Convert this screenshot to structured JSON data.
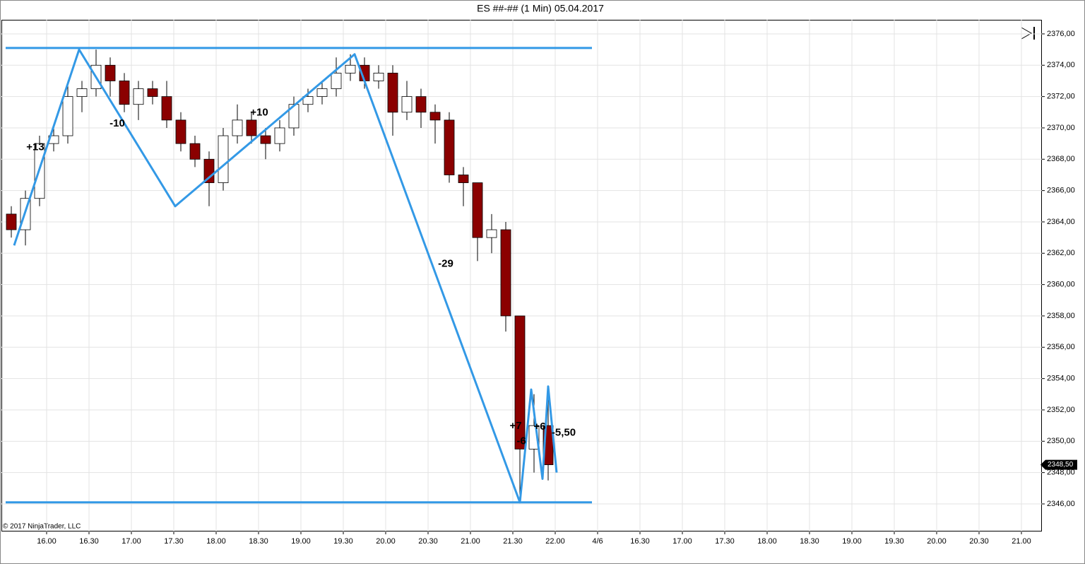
{
  "chart_data": {
    "type": "candlestick",
    "title": "ES ##-## (1 Min)  05.04.2017",
    "copyright": "© 2017 NinjaTrader, LLC",
    "xlim": [
      928,
      1664.5
    ],
    "ylim": [
      2344.24,
      2376.9
    ],
    "xticks": [
      {
        "value": 960,
        "label": "16.00"
      },
      {
        "value": 990,
        "label": "16.30"
      },
      {
        "value": 1020,
        "label": "17.00"
      },
      {
        "value": 1050,
        "label": "17.30"
      },
      {
        "value": 1080,
        "label": "18.00"
      },
      {
        "value": 1110,
        "label": "18.30"
      },
      {
        "value": 1140,
        "label": "19.00"
      },
      {
        "value": 1170,
        "label": "19.30"
      },
      {
        "value": 1200,
        "label": "20.00"
      },
      {
        "value": 1230,
        "label": "20.30"
      },
      {
        "value": 1260,
        "label": "21.00"
      },
      {
        "value": 1290,
        "label": "21.30"
      },
      {
        "value": 1320,
        "label": "22.00"
      },
      {
        "value": 1350,
        "label": "4/6"
      },
      {
        "value": 1380,
        "label": "16.30"
      },
      {
        "value": 1410,
        "label": "17.00"
      },
      {
        "value": 1440,
        "label": "17.30"
      },
      {
        "value": 1470,
        "label": "18.00"
      },
      {
        "value": 1500,
        "label": "18.30"
      },
      {
        "value": 1530,
        "label": "19.00"
      },
      {
        "value": 1560,
        "label": "19.30"
      },
      {
        "value": 1590,
        "label": "20.00"
      },
      {
        "value": 1620,
        "label": "20.30"
      },
      {
        "value": 1650,
        "label": "21.00"
      }
    ],
    "yticks": [
      {
        "value": 2346,
        "label": "2346,00"
      },
      {
        "value": 2348,
        "label": "2348,00"
      },
      {
        "value": 2350,
        "label": "2350,00"
      },
      {
        "value": 2352,
        "label": "2352,00"
      },
      {
        "value": 2354,
        "label": "2354,00"
      },
      {
        "value": 2356,
        "label": "2356,00"
      },
      {
        "value": 2358,
        "label": "2358,00"
      },
      {
        "value": 2360,
        "label": "2360,00"
      },
      {
        "value": 2362,
        "label": "2362,00"
      },
      {
        "value": 2364,
        "label": "2364,00"
      },
      {
        "value": 2366,
        "label": "2366,00"
      },
      {
        "value": 2368,
        "label": "2368,00"
      },
      {
        "value": 2370,
        "label": "2370,00"
      },
      {
        "value": 2372,
        "label": "2372,00"
      },
      {
        "value": 2374,
        "label": "2374,00"
      },
      {
        "value": 2376,
        "label": "2376,00"
      }
    ],
    "grid": true,
    "up_color": "#ffffff",
    "down_color": "#8b0000",
    "candles": {
      "x": [
        930,
        940,
        950,
        960,
        970,
        980,
        990,
        1000,
        1010,
        1020,
        1030,
        1040,
        1050,
        1060,
        1070,
        1080,
        1090,
        1100,
        1110,
        1120,
        1130,
        1140,
        1150,
        1160,
        1170,
        1180,
        1190,
        1200,
        1210,
        1220,
        1230,
        1240,
        1250,
        1260,
        1270,
        1280,
        1290,
        1300,
        1310
      ],
      "open": [
        2364.5,
        2363.5,
        2365.5,
        2369,
        2369.5,
        2372,
        2372.5,
        2374,
        2373,
        2371.5,
        2372.5,
        2372,
        2370.5,
        2369,
        2368,
        2366.5,
        2369.5,
        2370.5,
        2369.5,
        2369,
        2370,
        2371.5,
        2372,
        2372.5,
        2373.5,
        2374,
        2373,
        2373.5,
        2371,
        2372,
        2371,
        2370.5,
        2367,
        2366.5,
        2363,
        2363.5,
        2358,
        2349.5,
        2351
      ],
      "high": [
        2365,
        2366,
        2369.5,
        2370,
        2373,
        2373,
        2375,
        2374.5,
        2373.5,
        2373,
        2373,
        2373,
        2371,
        2369.5,
        2368.5,
        2370,
        2371.5,
        2371,
        2370,
        2370.5,
        2372,
        2372.5,
        2373,
        2374.5,
        2374.7,
        2374.5,
        2374,
        2374,
        2373,
        2372.5,
        2371.5,
        2371,
        2367.5,
        2366.5,
        2364.5,
        2364,
        2358,
        2353,
        2353.5
      ],
      "low": [
        2363,
        2362.5,
        2365,
        2368.5,
        2369,
        2371,
        2372,
        2372,
        2371,
        2370.5,
        2371.5,
        2370,
        2368.5,
        2367.5,
        2365,
        2366,
        2369,
        2369,
        2368,
        2368.5,
        2369.5,
        2371,
        2371.5,
        2372,
        2373,
        2372.5,
        2372.5,
        2369.5,
        2370.5,
        2370,
        2369,
        2366.5,
        2365,
        2361.5,
        2362,
        2357,
        2346.2,
        2348,
        2347.5
      ],
      "close": [
        2363.5,
        2365.5,
        2369,
        2369.5,
        2372,
        2372.5,
        2374,
        2373,
        2371.5,
        2372.5,
        2372,
        2370.5,
        2369,
        2368,
        2366.5,
        2369.5,
        2370.5,
        2369.5,
        2369,
        2370,
        2371.5,
        2372,
        2372.5,
        2373.5,
        2374,
        2373,
        2373.5,
        2371,
        2372,
        2371,
        2370.5,
        2367,
        2366.5,
        2363,
        2363.5,
        2358,
        2349.5,
        2351,
        2348.5
      ]
    },
    "zigzag": {
      "color": "#3399e6",
      "x": [
        937,
        983,
        1051,
        1178,
        1295,
        1303,
        1311,
        1315,
        1321
      ],
      "values": [
        2362.5,
        2375,
        2365,
        2374.7,
        2346.1,
        2353.3,
        2347.6,
        2353.5,
        2348
      ],
      "labels": [
        "+13",
        "-10",
        "+10",
        "-29",
        "+7",
        "-6",
        "+6",
        "-5,50"
      ]
    },
    "levels": {
      "color": "#3399e6",
      "x": [
        931,
        1346
      ],
      "values": [
        2375.1,
        2346.1
      ]
    },
    "last_price": {
      "value": 2348.5,
      "label": "2348,50"
    }
  }
}
